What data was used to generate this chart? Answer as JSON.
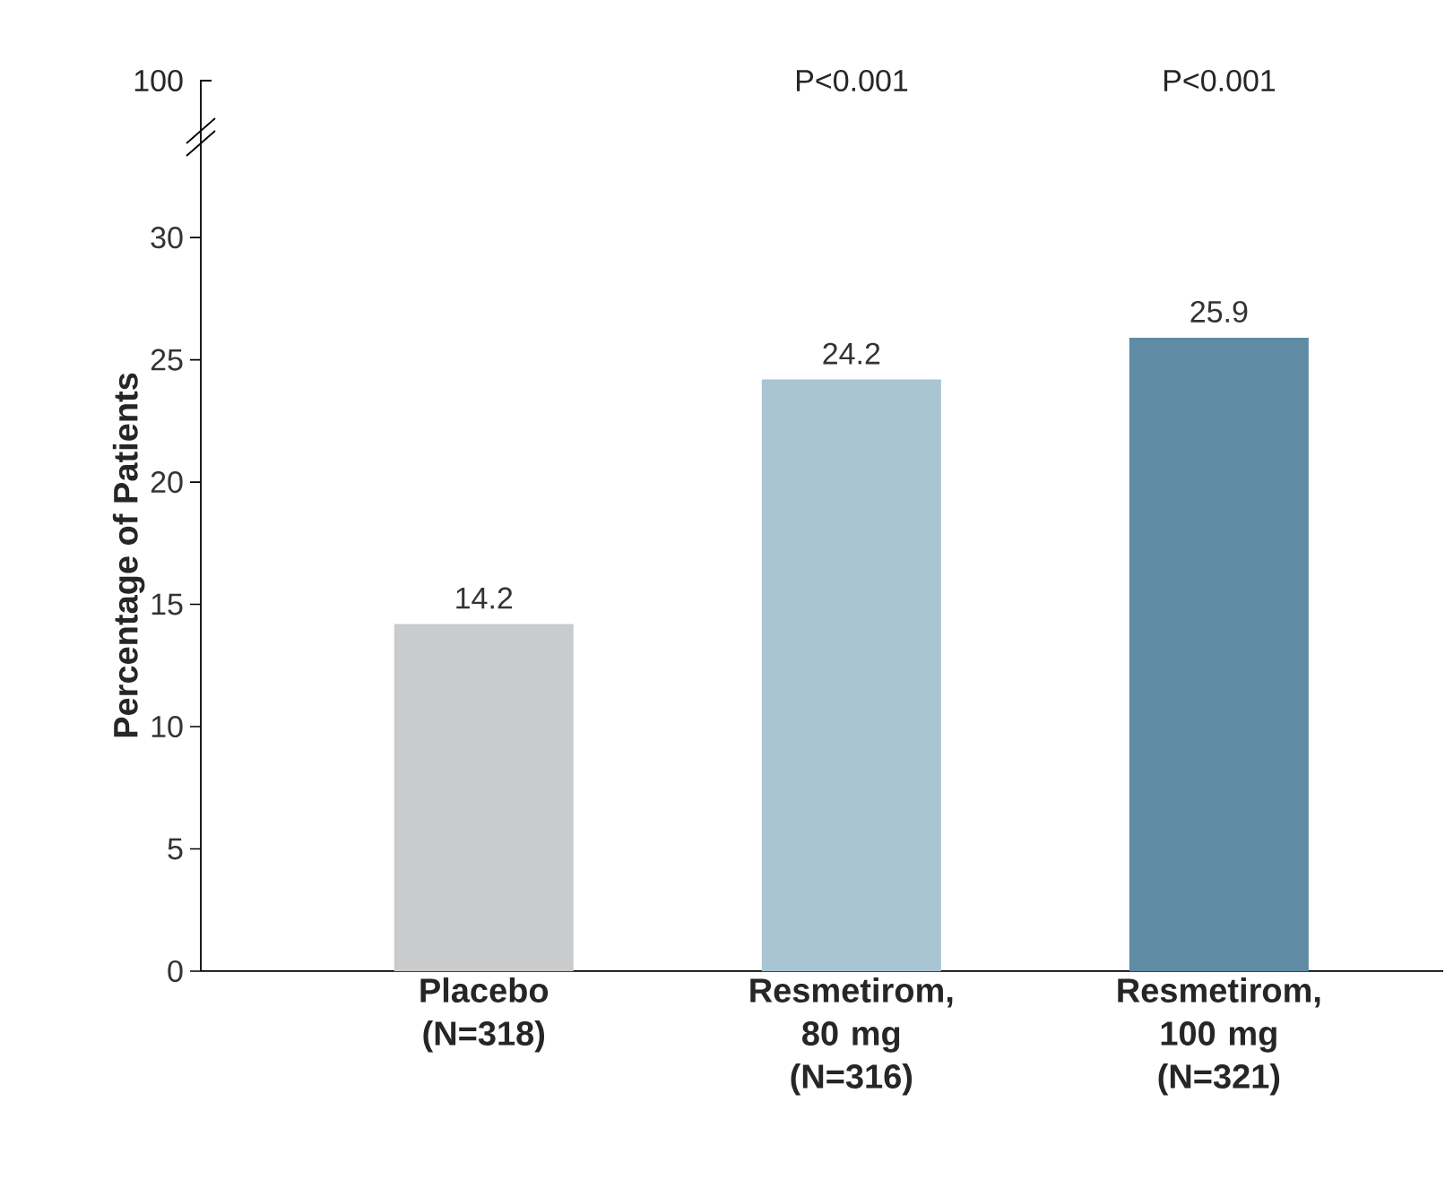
{
  "chart_data": {
    "type": "bar",
    "ylabel": "Percentage of Patients",
    "categories": [
      "Placebo (N=318)",
      "Resmetirom, 80 mg (N=316)",
      "Resmetirom, 100 mg (N=321)"
    ],
    "values": [
      14.2,
      24.2,
      25.9
    ],
    "colors": [
      "#c9cbcd",
      "#a9c4d3",
      "#5f8ba5"
    ],
    "data_labels": true,
    "ylim": [
      0,
      34
    ],
    "yticks": [
      0,
      5,
      10,
      15,
      20,
      25,
      30
    ],
    "annotations": [
      "100",
      "P<0.001",
      "P<0.001"
    ]
  }
}
